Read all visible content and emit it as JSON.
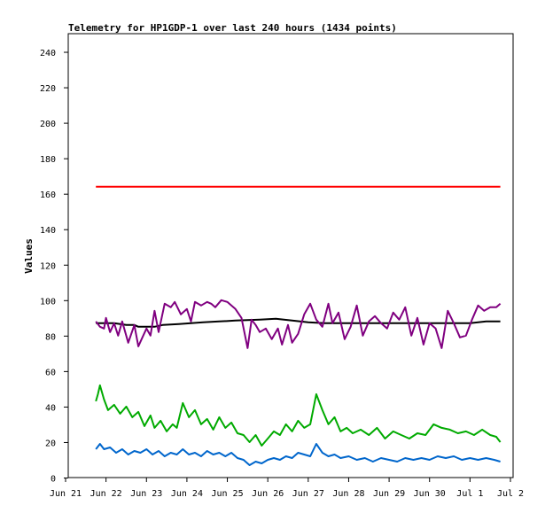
{
  "chart_data": {
    "type": "line",
    "title": "Telemetry for HP1GDP-1 over last 240 hours (1434 points)",
    "xlabel": "",
    "ylabel": "Values",
    "xlim": [
      "Jun 21",
      "Jul 2"
    ],
    "ylim": [
      0,
      250
    ],
    "x_ticks": [
      "Jun 21",
      "Jun 22",
      "Jun 23",
      "Jun 24",
      "Jun 25",
      "Jun 26",
      "Jun 27",
      "Jun 28",
      "Jun 29",
      "Jun 30",
      "Jul 1",
      "Jul 2"
    ],
    "y_ticks": [
      0,
      20,
      40,
      60,
      80,
      100,
      120,
      140,
      160,
      180,
      200,
      220,
      240
    ],
    "grid": false,
    "legend": "none",
    "x_unit": "days since Jun 21 00:00",
    "series": [
      {
        "color": "#ff0000",
        "x": [
          0.75,
          10.75
        ],
        "values": [
          164,
          164
        ]
      },
      {
        "color": "#000000",
        "x": [
          0.75,
          1.2,
          1.5,
          1.7,
          1.8,
          2.2,
          2.4,
          2.8,
          3.4,
          3.8,
          4.2,
          4.8,
          5.2,
          5.6,
          6.0,
          6.4,
          7.0,
          8.0,
          9.0,
          10.0,
          10.4,
          10.75
        ],
        "values": [
          87,
          87,
          86,
          86,
          85,
          85,
          86,
          86.5,
          87.5,
          88,
          88.5,
          89,
          89.5,
          88.5,
          87.5,
          87,
          87,
          87,
          87,
          87,
          88,
          88
        ]
      },
      {
        "color": "#800080",
        "x": [
          0.75,
          0.85,
          0.95,
          1.0,
          1.1,
          1.2,
          1.3,
          1.4,
          1.55,
          1.7,
          1.8,
          1.9,
          2.0,
          2.1,
          2.2,
          2.3,
          2.45,
          2.6,
          2.7,
          2.85,
          3.0,
          3.1,
          3.2,
          3.35,
          3.5,
          3.6,
          3.7,
          3.85,
          4.0,
          4.2,
          4.35,
          4.5,
          4.6,
          4.7,
          4.8,
          4.95,
          5.1,
          5.25,
          5.35,
          5.5,
          5.6,
          5.75,
          5.9,
          6.05,
          6.2,
          6.35,
          6.5,
          6.6,
          6.75,
          6.9,
          7.05,
          7.2,
          7.35,
          7.5,
          7.65,
          7.8,
          7.95,
          8.1,
          8.25,
          8.4,
          8.55,
          8.7,
          8.85,
          9.0,
          9.15,
          9.3,
          9.45,
          9.6,
          9.75,
          9.9,
          10.05,
          10.2,
          10.35,
          10.5,
          10.65,
          10.75
        ],
        "values": [
          88,
          85,
          84,
          90,
          82,
          87,
          80,
          88,
          76,
          86,
          74,
          79,
          84,
          80,
          94,
          82,
          98,
          96,
          99,
          92,
          95,
          88,
          99,
          97,
          99,
          98,
          96,
          100,
          99,
          95,
          90,
          73,
          89,
          86,
          82,
          84,
          78,
          84,
          75,
          86,
          76,
          81,
          92,
          98,
          89,
          85,
          98,
          87,
          93,
          78,
          85,
          97,
          80,
          88,
          91,
          87,
          84,
          93,
          89,
          96,
          80,
          90,
          75,
          87,
          84,
          73,
          94,
          87,
          79,
          80,
          89,
          97,
          94,
          96,
          96,
          98
        ]
      },
      {
        "color": "#00aa00",
        "x": [
          0.75,
          0.8,
          0.85,
          0.95,
          1.05,
          1.2,
          1.35,
          1.5,
          1.65,
          1.8,
          1.95,
          2.1,
          2.2,
          2.35,
          2.5,
          2.65,
          2.75,
          2.9,
          3.05,
          3.2,
          3.35,
          3.5,
          3.65,
          3.8,
          3.95,
          4.1,
          4.25,
          4.4,
          4.55,
          4.7,
          4.85,
          5.0,
          5.15,
          5.3,
          5.45,
          5.6,
          5.75,
          5.9,
          6.05,
          6.2,
          6.35,
          6.5,
          6.65,
          6.8,
          6.95,
          7.1,
          7.3,
          7.5,
          7.7,
          7.9,
          8.1,
          8.3,
          8.5,
          8.7,
          8.9,
          9.1,
          9.3,
          9.5,
          9.7,
          9.9,
          10.1,
          10.3,
          10.5,
          10.65,
          10.75
        ],
        "values": [
          43,
          47,
          52,
          44,
          38,
          41,
          36,
          40,
          34,
          37,
          29,
          35,
          28,
          32,
          26,
          30,
          28,
          42,
          34,
          38,
          30,
          33,
          27,
          34,
          28,
          31,
          25,
          24,
          20,
          24,
          18,
          22,
          26,
          24,
          30,
          26,
          32,
          28,
          30,
          47,
          38,
          30,
          34,
          26,
          28,
          25,
          27,
          24,
          28,
          22,
          26,
          24,
          22,
          25,
          24,
          30,
          28,
          27,
          25,
          26,
          24,
          27,
          24,
          23,
          20
        ]
      },
      {
        "color": "#0066cc",
        "x": [
          0.75,
          0.85,
          0.95,
          1.1,
          1.25,
          1.4,
          1.55,
          1.7,
          1.85,
          2.0,
          2.15,
          2.3,
          2.45,
          2.6,
          2.75,
          2.9,
          3.05,
          3.2,
          3.35,
          3.5,
          3.65,
          3.8,
          3.95,
          4.1,
          4.25,
          4.4,
          4.55,
          4.7,
          4.85,
          5.0,
          5.15,
          5.3,
          5.45,
          5.6,
          5.75,
          5.9,
          6.05,
          6.2,
          6.35,
          6.5,
          6.65,
          6.8,
          7.0,
          7.2,
          7.4,
          7.6,
          7.8,
          8.0,
          8.2,
          8.4,
          8.6,
          8.8,
          9.0,
          9.2,
          9.4,
          9.6,
          9.8,
          10.0,
          10.2,
          10.4,
          10.6,
          10.75
        ],
        "values": [
          16,
          19,
          16,
          17,
          14,
          16,
          13,
          15,
          14,
          16,
          13,
          15,
          12,
          14,
          13,
          16,
          13,
          14,
          12,
          15,
          13,
          14,
          12,
          14,
          11,
          10,
          7,
          9,
          8,
          10,
          11,
          10,
          12,
          11,
          14,
          13,
          12,
          19,
          14,
          12,
          13,
          11,
          12,
          10,
          11,
          9,
          11,
          10,
          9,
          11,
          10,
          11,
          10,
          12,
          11,
          12,
          10,
          11,
          10,
          11,
          10,
          9
        ]
      }
    ]
  }
}
